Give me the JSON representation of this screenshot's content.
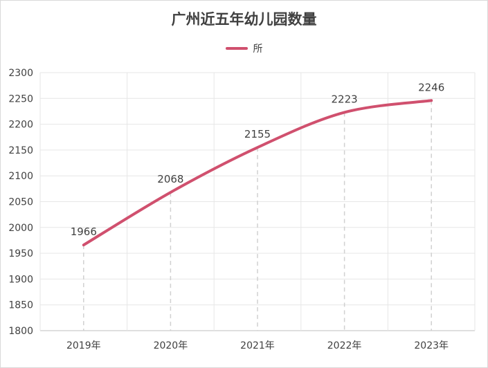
{
  "chart_data": {
    "type": "line",
    "title": "广州近五年幼儿园数量",
    "categories": [
      "2019年",
      "2020年",
      "2021年",
      "2022年",
      "2023年"
    ],
    "series": [
      {
        "name": "所",
        "values": [
          1966,
          2068,
          2155,
          2223,
          2246
        ]
      }
    ],
    "data_labels": [
      "1966",
      "2068",
      "2155",
      "2223",
      "2246"
    ],
    "yticks": [
      "1800",
      "1850",
      "1900",
      "1950",
      "2000",
      "2050",
      "2100",
      "2150",
      "2200",
      "2250",
      "2300"
    ],
    "ylim": [
      1800,
      2300
    ],
    "grid": true,
    "legend_position": "top-center",
    "line_color": "#d0506e"
  }
}
